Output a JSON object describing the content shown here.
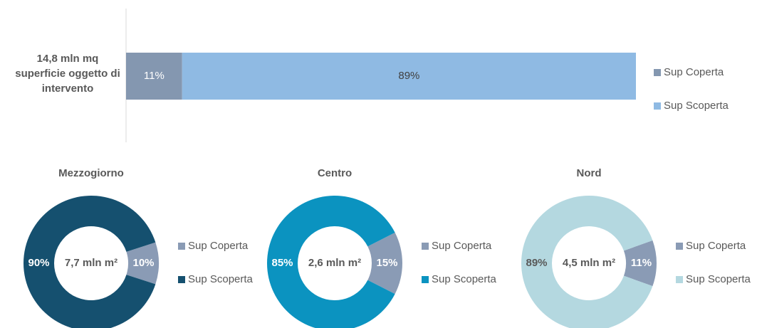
{
  "chart_data": [
    {
      "type": "bar",
      "orientation": "horizontal",
      "stacked": true,
      "categories": [
        "14,8 mln mq superficie oggetto di intervento"
      ],
      "xlim": [
        0,
        100
      ],
      "series": [
        {
          "name": "Sup Coperta",
          "color": "#8497b0",
          "label_color": "#ffffff",
          "values": [
            11
          ],
          "value_labels": [
            "11%"
          ]
        },
        {
          "name": "Sup Scoperta",
          "color": "#8fbae3",
          "label_color": "#404040",
          "values": [
            89
          ],
          "value_labels": [
            "89%"
          ]
        }
      ]
    },
    {
      "type": "donut",
      "title": "Mezzogiorno",
      "center_label": "7,7 mln m²",
      "categories": [
        "Sup Coperta",
        "Sup Scoperta"
      ],
      "values": [
        10,
        90
      ],
      "value_labels": [
        "10%",
        "90%"
      ],
      "colors": [
        "#8a9bb5",
        "#15506f"
      ],
      "label_colors": [
        "#ffffff",
        "#ffffff"
      ]
    },
    {
      "type": "donut",
      "title": "Centro",
      "center_label": "2,6 mln m²",
      "categories": [
        "Sup Coperta",
        "Sup Scoperta"
      ],
      "values": [
        15,
        85
      ],
      "value_labels": [
        "15%",
        "85%"
      ],
      "colors": [
        "#8a9bb5",
        "#0b93c0"
      ],
      "label_colors": [
        "#ffffff",
        "#ffffff"
      ]
    },
    {
      "type": "donut",
      "title": "Nord",
      "center_label": "4,5 mln m²",
      "categories": [
        "Sup Coperta",
        "Sup Scoperta"
      ],
      "values": [
        11,
        89
      ],
      "value_labels": [
        "11%",
        "89%"
      ],
      "colors": [
        "#8a9bb5",
        "#b4d8e0"
      ],
      "label_colors": [
        "#ffffff",
        "#595959"
      ]
    }
  ]
}
